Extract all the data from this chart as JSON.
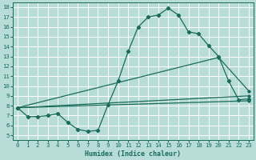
{
  "xlabel": "Humidex (Indice chaleur)",
  "ylabel": "",
  "bg_color": "#b8ddd8",
  "line_color": "#1a6b5a",
  "grid_color": "#ffffff",
  "xlim": [
    -0.5,
    23.5
  ],
  "ylim": [
    4.5,
    18.5
  ],
  "xticks": [
    0,
    1,
    2,
    3,
    4,
    5,
    6,
    7,
    8,
    9,
    10,
    11,
    12,
    13,
    14,
    15,
    16,
    17,
    18,
    19,
    20,
    21,
    22,
    23
  ],
  "yticks": [
    5,
    6,
    7,
    8,
    9,
    10,
    11,
    12,
    13,
    14,
    15,
    16,
    17,
    18
  ],
  "series1_x": [
    0,
    1,
    2,
    3,
    4,
    5,
    6,
    7,
    8,
    9,
    10,
    11,
    12,
    13,
    14,
    15,
    16,
    17,
    18,
    19,
    20,
    21,
    22,
    23
  ],
  "series1_y": [
    7.8,
    6.9,
    6.9,
    7.0,
    7.2,
    6.3,
    5.6,
    5.4,
    5.5,
    8.1,
    10.5,
    13.5,
    16.0,
    17.0,
    17.2,
    17.9,
    17.2,
    15.5,
    15.3,
    14.1,
    13.0,
    10.5,
    8.6,
    8.7
  ],
  "series2_x": [
    0,
    20,
    23
  ],
  "series2_y": [
    7.8,
    12.9,
    9.5
  ],
  "series3_x": [
    0,
    23
  ],
  "series3_y": [
    7.8,
    9.0
  ],
  "series4_x": [
    0,
    23
  ],
  "series4_y": [
    7.8,
    8.5
  ]
}
